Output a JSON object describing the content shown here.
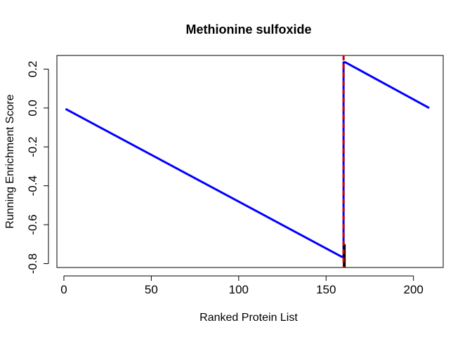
{
  "chart_data": {
    "type": "line",
    "title": "Methionine sulfoxide",
    "xlabel": "Ranked Protein List",
    "ylabel": "Running Enrichment Score",
    "xlim": [
      -4,
      217
    ],
    "ylim": [
      -0.82,
      0.27
    ],
    "x_ticks": [
      0,
      50,
      100,
      150,
      200
    ],
    "y_ticks": [
      -0.8,
      -0.6,
      -0.4,
      -0.2,
      0.0,
      0.2
    ],
    "y_tick_labels": [
      "-0.8",
      "-0.6",
      "-0.4",
      "-0.2",
      "0.0",
      "0.2"
    ],
    "grid": false,
    "series": [
      {
        "color": "#0000ff",
        "points": [
          [
            1,
            -0.005
          ],
          [
            159,
            -0.765
          ],
          [
            160,
            -0.765
          ],
          [
            160,
            0.235
          ],
          [
            161,
            0.235
          ],
          [
            209,
            0.0
          ]
        ]
      }
    ],
    "vline": {
      "x": 160,
      "color": "#cc0000",
      "style": "dashed"
    },
    "hit_marker": {
      "x": 160,
      "y_range": [
        -0.82,
        -0.7
      ],
      "color": "#000000"
    }
  }
}
